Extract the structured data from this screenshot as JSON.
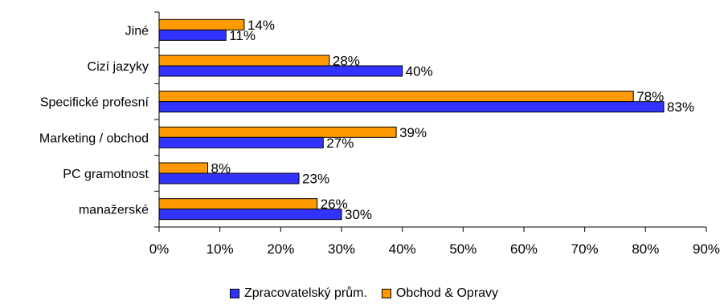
{
  "chart_data": {
    "type": "bar",
    "orientation": "horizontal",
    "categories": [
      "Jiné",
      "Cizí jazyky",
      "Specifické profesní",
      "Marketing / obchod",
      "PC gramotnost",
      "manažerské"
    ],
    "series": [
      {
        "name": "Obchod & Opravy",
        "color": "#FF9900",
        "values": [
          14,
          28,
          78,
          39,
          8,
          26
        ],
        "labels": [
          "14%",
          "28%",
          "78%",
          "39%",
          "8%",
          "26%"
        ]
      },
      {
        "name": "Zpracovatelský prům.",
        "color": "#3333FF",
        "values": [
          11,
          40,
          83,
          27,
          23,
          30
        ],
        "labels": [
          "11%",
          "40%",
          "83%",
          "27%",
          "23%",
          "30%"
        ]
      }
    ],
    "xlim": [
      0,
      90
    ],
    "xticks": [
      "0%",
      "10%",
      "20%",
      "30%",
      "40%",
      "50%",
      "60%",
      "70%",
      "80%",
      "90%"
    ],
    "legend_position": "bottom",
    "legend_order": [
      "Zpracovatelský prům.",
      "Obchod & Opravy"
    ],
    "grid": false
  }
}
